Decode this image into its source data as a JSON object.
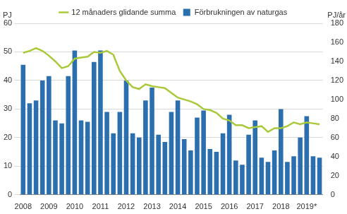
{
  "chart_data": {
    "type": "bar",
    "y_label": "PJ",
    "y2_label": "PJ/år",
    "categories": [
      "2008",
      null,
      null,
      null,
      "2009",
      null,
      null,
      null,
      "2010",
      null,
      null,
      null,
      "2011",
      null,
      null,
      null,
      "2012",
      null,
      null,
      null,
      "2013",
      null,
      null,
      null,
      "2014",
      null,
      null,
      null,
      "2015",
      null,
      null,
      null,
      "2016",
      null,
      null,
      null,
      "2017",
      null,
      null,
      null,
      "2018",
      null,
      null,
      null,
      "2019*",
      null,
      null
    ],
    "series": [
      {
        "name": "Förbrukningen av naturgas",
        "type": "bar",
        "color": "#2b6fae",
        "values": [
          45.5,
          32,
          33,
          40,
          41.5,
          26,
          25,
          41.5,
          50.5,
          26,
          25.5,
          46.5,
          50.5,
          29,
          21.5,
          29,
          40,
          21.5,
          20,
          33,
          37.5,
          21,
          18.5,
          29,
          33,
          19.5,
          15.5,
          27,
          29.5,
          16,
          15,
          21.5,
          28,
          12,
          10.5,
          21,
          26,
          13,
          11.5,
          15.5,
          30,
          11.5,
          13.5,
          20,
          27.5,
          13.5,
          13
        ]
      },
      {
        "name": "12 månaders glidande summa",
        "type": "line",
        "color": "#a9c93a",
        "axis": "y2",
        "values": [
          149,
          151,
          154,
          151,
          146,
          140,
          133,
          135,
          143,
          144,
          145,
          150,
          149,
          151,
          147,
          130,
          120,
          113,
          111,
          116,
          114,
          113,
          112,
          107,
          102,
          100,
          98,
          95,
          90,
          89,
          86,
          80,
          78,
          73,
          73,
          70,
          71,
          72,
          66,
          70,
          70,
          72,
          76,
          74,
          76,
          75,
          74
        ]
      }
    ],
    "ylim": [
      0,
      60
    ],
    "yticks": [
      0,
      10,
      20,
      30,
      40,
      50,
      60
    ],
    "y2lim": [
      0,
      180
    ],
    "y2ticks": [
      0,
      20,
      40,
      60,
      80,
      100,
      120,
      140,
      160,
      180
    ],
    "grid": true,
    "legend": "top"
  }
}
